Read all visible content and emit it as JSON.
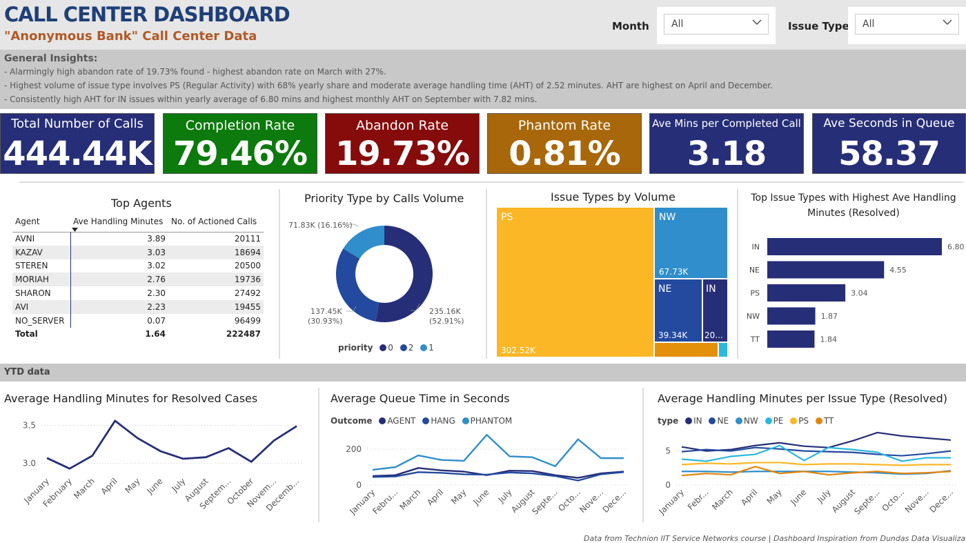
{
  "header": {
    "title": "CALL CENTER DASHBOARD",
    "subtitle": "\"Anonymous Bank\" Call Center Data",
    "month_label": "Month",
    "month_value": "All",
    "issue_type_label": "Issue Type",
    "issue_type_value": "All"
  },
  "insights": {
    "title": "General Insights:",
    "lines": [
      "- Alarmingly high abandon rate of 19.73% found - highest abandon rate on March with 27%.",
      "- Highest volume of issue type involves PS (Regular Activity) with 68% yearly share and moderate average handling time (AHT) of 2.52 minutes. AHT are highest on April and December.",
      "- Consistently high AHT for IN issues within yearly average of 6.80 mins and highest monthly AHT on September with 7.82 mins."
    ]
  },
  "kpis": [
    {
      "label": "Total Number of Calls",
      "value": "444.44K"
    },
    {
      "label": "Completion Rate",
      "value": "79.46%"
    },
    {
      "label": "Abandon Rate",
      "value": "19.73%"
    },
    {
      "label": "Phantom Rate",
      "value": "0.81%"
    },
    {
      "label": "Ave Mins per Completed Call",
      "value": "3.18"
    },
    {
      "label": "Ave Seconds in Queue",
      "value": "58.37"
    }
  ],
  "colors": {
    "navy": "#262e78",
    "green": "#0c7a0c",
    "maroon": "#860b0b",
    "amber": "#a8670a",
    "ps": "#fbb726",
    "nw": "#2f8ecb",
    "ne": "#234a9e",
    "in": "#262e78"
  },
  "top_agents": {
    "title": "Top Agents",
    "headers": [
      "Agent",
      "Ave Handling Minutes",
      "No. of Actioned Calls"
    ],
    "rows": [
      [
        "AVNI",
        "3.89",
        "20111"
      ],
      [
        "KAZAV",
        "3.03",
        "18694"
      ],
      [
        "STEREN",
        "3.02",
        "20500"
      ],
      [
        "MORIAH",
        "2.76",
        "19736"
      ],
      [
        "SHARON",
        "2.30",
        "27492"
      ],
      [
        "AVI",
        "2.23",
        "19455"
      ],
      [
        "NO_SERVER",
        "0.07",
        "96499"
      ]
    ],
    "total": [
      "Total",
      "1.64",
      "222487"
    ]
  },
  "donut": {
    "title": "Priority Type by Calls Volume",
    "legend_title": "priority",
    "labels": [
      "71.83K (16.16%)",
      "137.45K",
      "(30.93%)",
      "235.16K",
      "(52.91%)"
    ],
    "legend": [
      "0",
      "2",
      "1"
    ]
  },
  "treemap": {
    "title": "Issue Types by Volume",
    "tiles": [
      {
        "name": "PS",
        "value": "302.52K"
      },
      {
        "name": "NW",
        "value": "67.73K"
      },
      {
        "name": "NE",
        "value": "39.34K"
      },
      {
        "name": "IN",
        "value": "20..."
      }
    ]
  },
  "chart_data": [
    {
      "type": "pie",
      "title": "Priority Type by Calls Volume",
      "legend_title": "priority",
      "categories": [
        "0",
        "2",
        "1"
      ],
      "values": [
        235.16,
        137.45,
        71.83
      ],
      "percent": [
        52.91,
        30.93,
        16.16
      ],
      "colors": [
        "#262e78",
        "#234a9e",
        "#2f8ecb"
      ]
    },
    {
      "type": "heatmap",
      "title": "Issue Types by Volume",
      "categories": [
        "PS",
        "NW",
        "NE",
        "IN",
        "TT",
        "PE"
      ],
      "values": [
        302.52,
        67.73,
        39.34,
        20.0,
        8.5,
        2.0
      ]
    },
    {
      "type": "bar",
      "title": "Top Issue Types with Highest Ave Handling Minutes (Resolved)",
      "title_lines": [
        "Top Issue Types with Highest Ave Handling",
        "Minutes (Resolved)"
      ],
      "categories": [
        "IN",
        "NE",
        "PS",
        "NW",
        "TT"
      ],
      "values": [
        6.8,
        4.55,
        3.04,
        1.87,
        1.84
      ],
      "value_labels": [
        "6.80",
        "4.55",
        "3.04",
        "1.87",
        "1.84"
      ],
      "xlim": [
        0,
        6.8
      ]
    },
    {
      "type": "line",
      "title": "Average Handling Minutes for Resolved Cases",
      "categories": [
        "January",
        "February",
        "March",
        "April",
        "May",
        "June",
        "July",
        "August",
        "Septem...",
        "October",
        "Novem...",
        "Decemb..."
      ],
      "values": [
        3.07,
        2.93,
        3.1,
        3.56,
        3.33,
        3.16,
        3.06,
        3.08,
        3.2,
        3.02,
        3.3,
        3.49
      ],
      "ylim": [
        2.85,
        3.65
      ],
      "yticks": [
        "3.0",
        "3.5"
      ],
      "ytick_values": [
        3.0,
        3.5
      ]
    },
    {
      "type": "line",
      "title": "Average Queue Time in Seconds",
      "legend_title": "Outcome",
      "categories": [
        "January",
        "Febru...",
        "March",
        "April",
        "May",
        "June",
        "July",
        "August",
        "Septe...",
        "Octo...",
        "Nove...",
        "Dece..."
      ],
      "series": [
        {
          "name": "AGENT",
          "color": "#262e78",
          "values": [
            50,
            55,
            95,
            82,
            75,
            55,
            80,
            78,
            55,
            40,
            65,
            75
          ]
        },
        {
          "name": "HANG",
          "color": "#234a9e",
          "values": [
            45,
            48,
            72,
            68,
            60,
            58,
            70,
            65,
            50,
            25,
            60,
            72
          ]
        },
        {
          "name": "PHANTOM",
          "color": "#2f8ecb",
          "values": [
            85,
            100,
            165,
            140,
            135,
            280,
            160,
            155,
            105,
            255,
            150,
            150
          ]
        }
      ],
      "ylim": [
        0,
        300
      ],
      "yticks": [
        "0",
        "200"
      ],
      "ytick_values": [
        0,
        200
      ]
    },
    {
      "type": "line",
      "title": "Average Handling Minutes per Issue Type (Resolved)",
      "legend_title": "type",
      "categories": [
        "January",
        "Febr...",
        "March",
        "April",
        "May",
        "June",
        "July",
        "August",
        "Septe...",
        "Octo...",
        "Nove...",
        "Dece..."
      ],
      "series": [
        {
          "name": "IN",
          "color": "#262e78",
          "values": [
            5.6,
            5.0,
            5.2,
            5.8,
            6.2,
            5.7,
            5.5,
            6.5,
            7.7,
            7.2,
            6.9,
            6.6
          ]
        },
        {
          "name": "NE",
          "color": "#234a9e",
          "values": [
            4.9,
            5.2,
            5.0,
            5.5,
            5.3,
            5.0,
            4.9,
            4.8,
            4.5,
            4.3,
            4.6,
            5.0
          ]
        },
        {
          "name": "NW",
          "color": "#2f8ecb",
          "values": [
            2.0,
            2.0,
            1.9,
            2.0,
            2.0,
            2.0,
            2.0,
            1.9,
            1.8,
            1.6,
            1.7,
            2.1
          ]
        },
        {
          "name": "PE",
          "color": "#2ab7e0",
          "values": [
            3.8,
            3.5,
            4.2,
            4.5,
            5.8,
            3.6,
            5.5,
            5.2,
            4.8,
            3.5,
            4.0,
            4.0
          ]
        },
        {
          "name": "PS",
          "color": "#fbb726",
          "values": [
            3.0,
            3.2,
            3.1,
            3.3,
            3.3,
            3.0,
            3.1,
            3.1,
            3.0,
            2.9,
            3.0,
            3.0
          ]
        },
        {
          "name": "TT",
          "color": "#e3850a",
          "values": [
            1.4,
            1.7,
            1.5,
            2.7,
            1.7,
            2.0,
            1.5,
            1.8,
            2.0,
            1.7,
            1.8,
            2.0
          ]
        }
      ],
      "ylim": [
        0,
        8
      ],
      "yticks": [
        "0",
        "5"
      ],
      "ytick_values": [
        0,
        5
      ]
    }
  ],
  "ytd": {
    "label": "YTD data"
  },
  "footer": "Data from Technion IIT Service Networks course | Dashboard Inspiration from Dundas Data Visualization"
}
